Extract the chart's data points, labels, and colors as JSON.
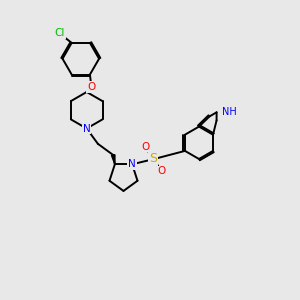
{
  "background_color": "#e8e8e8",
  "bond_color": "#000000",
  "bond_width": 1.4,
  "figsize": [
    3.0,
    3.0
  ],
  "dpi": 100,
  "xlim": [
    -1.0,
    9.0
  ],
  "ylim": [
    -1.0,
    9.0
  ],
  "atoms": {
    "Cl": {
      "color": "#00bb00"
    },
    "O": {
      "color": "#ff0000"
    },
    "N": {
      "color": "#0000ff"
    },
    "S": {
      "color": "#ccaa00"
    },
    "NH": {
      "color": "#0000ff"
    },
    "H": {
      "color": "#44aaaa"
    }
  },
  "fontsize": 7.5
}
